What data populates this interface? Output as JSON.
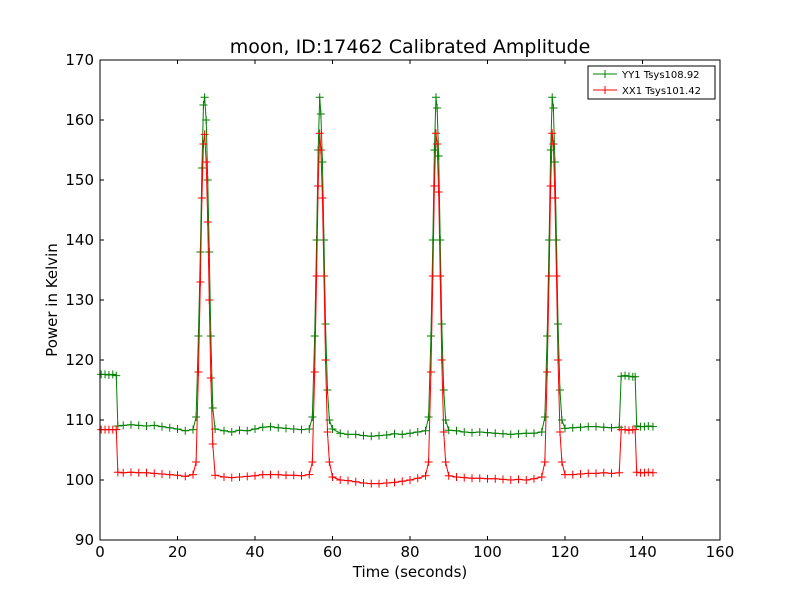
{
  "chart_data": {
    "type": "line",
    "title": "moon, ID:17462 Calibrated Amplitude",
    "xlabel": "Time (seconds)",
    "ylabel": "Power in Kelvin",
    "xlim": [
      0,
      160
    ],
    "ylim": [
      90,
      170
    ],
    "xticks": [
      0,
      20,
      40,
      60,
      80,
      100,
      120,
      140,
      160
    ],
    "yticks": [
      90,
      100,
      110,
      120,
      130,
      140,
      150,
      160,
      170
    ],
    "grid": false,
    "legend_position": "top-right",
    "marker": "+",
    "series": [
      {
        "name": "YY1 Tsys108.92",
        "color": "#008000",
        "points": [
          [
            0.3,
            117.6
          ],
          [
            1.3,
            117.6
          ],
          [
            2.3,
            117.5
          ],
          [
            3.3,
            117.6
          ],
          [
            4.2,
            117.4
          ],
          [
            4.6,
            109.0
          ],
          [
            6.0,
            109.1
          ],
          [
            8.0,
            109.2
          ],
          [
            10.0,
            109.1
          ],
          [
            12.0,
            109.0
          ],
          [
            14.0,
            109.1
          ],
          [
            16.0,
            108.9
          ],
          [
            18.0,
            108.7
          ],
          [
            20.0,
            108.5
          ],
          [
            22.0,
            108.2
          ],
          [
            24.0,
            108.4
          ],
          [
            24.8,
            110.5
          ],
          [
            25.4,
            124.0
          ],
          [
            25.9,
            138.0
          ],
          [
            26.3,
            152.0
          ],
          [
            26.7,
            162.5
          ],
          [
            27.0,
            163.8
          ],
          [
            27.4,
            160.0
          ],
          [
            27.8,
            150.0
          ],
          [
            28.2,
            138.0
          ],
          [
            28.6,
            124.0
          ],
          [
            29.1,
            112.0
          ],
          [
            29.7,
            108.5
          ],
          [
            32.0,
            108.2
          ],
          [
            34.0,
            108.0
          ],
          [
            36.0,
            108.3
          ],
          [
            38.0,
            108.2
          ],
          [
            40.0,
            108.5
          ],
          [
            42.0,
            108.8
          ],
          [
            44.0,
            108.9
          ],
          [
            46.0,
            108.7
          ],
          [
            48.0,
            108.6
          ],
          [
            50.0,
            108.5
          ],
          [
            52.0,
            108.4
          ],
          [
            54.0,
            108.5
          ],
          [
            54.8,
            110.5
          ],
          [
            55.4,
            124.0
          ],
          [
            55.9,
            140.0
          ],
          [
            56.3,
            155.0
          ],
          [
            56.7,
            163.8
          ],
          [
            57.0,
            161.0
          ],
          [
            57.4,
            153.0
          ],
          [
            57.8,
            140.0
          ],
          [
            58.2,
            126.0
          ],
          [
            58.7,
            115.0
          ],
          [
            59.2,
            110.0
          ],
          [
            60.0,
            108.5
          ],
          [
            62.0,
            107.8
          ],
          [
            64.0,
            107.6
          ],
          [
            66.0,
            107.6
          ],
          [
            68.0,
            107.4
          ],
          [
            70.0,
            107.3
          ],
          [
            72.0,
            107.4
          ],
          [
            74.0,
            107.5
          ],
          [
            76.0,
            107.7
          ],
          [
            78.0,
            107.6
          ],
          [
            80.0,
            107.8
          ],
          [
            82.0,
            108.0
          ],
          [
            84.0,
            108.2
          ],
          [
            84.8,
            110.5
          ],
          [
            85.4,
            124.0
          ],
          [
            85.9,
            140.0
          ],
          [
            86.3,
            155.0
          ],
          [
            86.7,
            163.8
          ],
          [
            87.0,
            162.0
          ],
          [
            87.4,
            154.0
          ],
          [
            87.8,
            140.0
          ],
          [
            88.2,
            126.0
          ],
          [
            88.7,
            115.0
          ],
          [
            89.2,
            110.0
          ],
          [
            90.0,
            108.3
          ],
          [
            92.0,
            108.2
          ],
          [
            94.0,
            108.0
          ],
          [
            96.0,
            107.9
          ],
          [
            98.0,
            108.0
          ],
          [
            100.0,
            107.9
          ],
          [
            102.0,
            107.8
          ],
          [
            104.0,
            107.7
          ],
          [
            106.0,
            107.6
          ],
          [
            108.0,
            107.7
          ],
          [
            110.0,
            107.8
          ],
          [
            112.0,
            107.8
          ],
          [
            114.0,
            108.0
          ],
          [
            114.8,
            110.5
          ],
          [
            115.4,
            124.0
          ],
          [
            115.9,
            140.0
          ],
          [
            116.3,
            155.0
          ],
          [
            116.7,
            163.8
          ],
          [
            117.0,
            162.0
          ],
          [
            117.4,
            153.0
          ],
          [
            117.8,
            140.0
          ],
          [
            118.2,
            126.0
          ],
          [
            118.7,
            115.0
          ],
          [
            119.2,
            110.0
          ],
          [
            120.0,
            108.6
          ],
          [
            122.0,
            108.7
          ],
          [
            124.0,
            108.8
          ],
          [
            126.0,
            108.9
          ],
          [
            128.0,
            108.9
          ],
          [
            130.0,
            108.8
          ],
          [
            132.0,
            108.7
          ],
          [
            134.0,
            108.8
          ],
          [
            134.5,
            117.3
          ],
          [
            135.5,
            117.4
          ],
          [
            136.5,
            117.3
          ],
          [
            137.5,
            117.2
          ],
          [
            138.1,
            117.2
          ],
          [
            138.5,
            109.0
          ],
          [
            139.5,
            108.9
          ],
          [
            140.5,
            108.9
          ],
          [
            141.5,
            109.0
          ],
          [
            142.7,
            108.9
          ]
        ]
      },
      {
        "name": "XX1 Tsys101.42",
        "color": "#ff0000",
        "points": [
          [
            0.3,
            108.4
          ],
          [
            1.3,
            108.4
          ],
          [
            2.3,
            108.4
          ],
          [
            3.3,
            108.4
          ],
          [
            4.2,
            108.4
          ],
          [
            4.6,
            101.3
          ],
          [
            6.0,
            101.2
          ],
          [
            8.0,
            101.3
          ],
          [
            10.0,
            101.2
          ],
          [
            12.0,
            101.2
          ],
          [
            14.0,
            101.1
          ],
          [
            16.0,
            101.0
          ],
          [
            18.0,
            100.9
          ],
          [
            20.0,
            100.8
          ],
          [
            22.0,
            100.6
          ],
          [
            24.0,
            100.9
          ],
          [
            24.8,
            103.0
          ],
          [
            25.4,
            118.0
          ],
          [
            25.9,
            133.0
          ],
          [
            26.3,
            147.0
          ],
          [
            26.7,
            156.0
          ],
          [
            27.0,
            157.6
          ],
          [
            27.4,
            153.0
          ],
          [
            27.8,
            143.0
          ],
          [
            28.2,
            130.0
          ],
          [
            28.6,
            117.0
          ],
          [
            29.1,
            106.0
          ],
          [
            29.7,
            100.8
          ],
          [
            32.0,
            100.5
          ],
          [
            34.0,
            100.4
          ],
          [
            36.0,
            100.5
          ],
          [
            38.0,
            100.6
          ],
          [
            40.0,
            100.7
          ],
          [
            42.0,
            100.9
          ],
          [
            44.0,
            100.9
          ],
          [
            46.0,
            100.9
          ],
          [
            48.0,
            100.8
          ],
          [
            50.0,
            100.8
          ],
          [
            52.0,
            100.7
          ],
          [
            54.0,
            100.9
          ],
          [
            54.8,
            103.0
          ],
          [
            55.4,
            118.0
          ],
          [
            55.9,
            134.0
          ],
          [
            56.3,
            149.0
          ],
          [
            56.7,
            157.8
          ],
          [
            57.0,
            155.0
          ],
          [
            57.4,
            147.0
          ],
          [
            57.8,
            134.0
          ],
          [
            58.2,
            120.0
          ],
          [
            58.7,
            108.0
          ],
          [
            59.2,
            103.0
          ],
          [
            60.0,
            100.5
          ],
          [
            62.0,
            100.0
          ],
          [
            64.0,
            99.9
          ],
          [
            66.0,
            99.7
          ],
          [
            68.0,
            99.5
          ],
          [
            70.0,
            99.4
          ],
          [
            72.0,
            99.4
          ],
          [
            74.0,
            99.5
          ],
          [
            76.0,
            99.6
          ],
          [
            78.0,
            99.8
          ],
          [
            80.0,
            100.0
          ],
          [
            82.0,
            100.3
          ],
          [
            84.0,
            100.7
          ],
          [
            84.8,
            103.0
          ],
          [
            85.4,
            118.0
          ],
          [
            85.9,
            134.0
          ],
          [
            86.3,
            149.0
          ],
          [
            86.7,
            157.8
          ],
          [
            87.0,
            156.0
          ],
          [
            87.4,
            148.0
          ],
          [
            87.8,
            134.0
          ],
          [
            88.2,
            120.0
          ],
          [
            88.7,
            108.0
          ],
          [
            89.2,
            103.0
          ],
          [
            90.0,
            100.7
          ],
          [
            92.0,
            100.5
          ],
          [
            94.0,
            100.4
          ],
          [
            96.0,
            100.3
          ],
          [
            98.0,
            100.3
          ],
          [
            100.0,
            100.2
          ],
          [
            102.0,
            100.2
          ],
          [
            104.0,
            100.1
          ],
          [
            106.0,
            100.0
          ],
          [
            108.0,
            100.1
          ],
          [
            110.0,
            100.0
          ],
          [
            112.0,
            100.2
          ],
          [
            114.0,
            100.5
          ],
          [
            114.8,
            103.0
          ],
          [
            115.4,
            118.0
          ],
          [
            115.9,
            134.0
          ],
          [
            116.3,
            149.0
          ],
          [
            116.7,
            157.8
          ],
          [
            117.0,
            156.0
          ],
          [
            117.4,
            147.0
          ],
          [
            117.8,
            134.0
          ],
          [
            118.2,
            120.0
          ],
          [
            118.7,
            108.0
          ],
          [
            119.2,
            103.0
          ],
          [
            120.0,
            100.9
          ],
          [
            122.0,
            100.9
          ],
          [
            124.0,
            101.0
          ],
          [
            126.0,
            101.1
          ],
          [
            128.0,
            101.1
          ],
          [
            130.0,
            101.2
          ],
          [
            132.0,
            101.1
          ],
          [
            134.0,
            101.2
          ],
          [
            134.5,
            108.4
          ],
          [
            135.5,
            108.4
          ],
          [
            136.5,
            108.3
          ],
          [
            137.5,
            108.4
          ],
          [
            138.1,
            108.4
          ],
          [
            138.5,
            101.3
          ],
          [
            139.5,
            101.2
          ],
          [
            140.5,
            101.2
          ],
          [
            141.5,
            101.3
          ],
          [
            142.7,
            101.2
          ]
        ]
      }
    ]
  }
}
